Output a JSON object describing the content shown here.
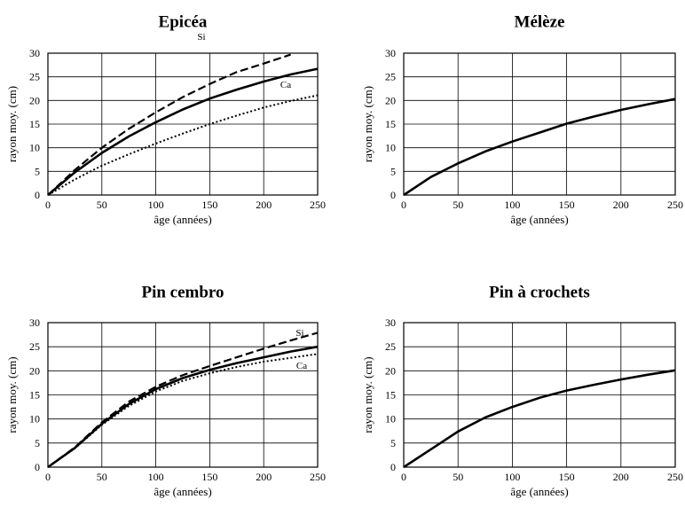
{
  "chart_data": [
    {
      "type": "line",
      "title": "Epicéa",
      "xlabel": "âge (années)",
      "ylabel": "rayon moy. (cm)",
      "xlim": [
        0,
        250
      ],
      "ylim": [
        0,
        30
      ],
      "xticks": [
        0,
        50,
        100,
        150,
        200,
        250
      ],
      "yticks": [
        0,
        5,
        10,
        15,
        20,
        25,
        30
      ],
      "grid": true,
      "series": [
        {
          "name": "",
          "style": "solid",
          "x": [
            0,
            25,
            50,
            75,
            100,
            125,
            150,
            175,
            200,
            225,
            250
          ],
          "y": [
            0,
            4.8,
            8.9,
            12.4,
            15.4,
            18.1,
            20.4,
            22.3,
            24.0,
            25.5,
            26.7
          ]
        },
        {
          "name": "Si",
          "style": "dashed",
          "x": [
            0,
            25,
            50,
            75,
            100,
            125,
            150,
            175,
            200,
            225
          ],
          "y": [
            0,
            5.3,
            10.0,
            14.0,
            17.5,
            20.7,
            23.5,
            26.0,
            27.8,
            29.7
          ]
        },
        {
          "name": "Ca",
          "style": "dotted",
          "x": [
            0,
            25,
            50,
            75,
            100,
            125,
            150,
            175,
            200,
            225,
            250
          ],
          "y": [
            0,
            3.3,
            6.2,
            8.6,
            10.9,
            13.0,
            15.0,
            16.8,
            18.5,
            19.9,
            21.1
          ]
        }
      ]
    },
    {
      "type": "line",
      "title": "Mélèze",
      "xlabel": "âge (années)",
      "ylabel": "rayon moy. (cm)",
      "xlim": [
        0,
        250
      ],
      "ylim": [
        0,
        30
      ],
      "xticks": [
        0,
        50,
        100,
        150,
        200,
        250
      ],
      "yticks": [
        0,
        5,
        10,
        15,
        20,
        25,
        30
      ],
      "grid": true,
      "series": [
        {
          "name": "",
          "style": "solid",
          "x": [
            0,
            25,
            50,
            75,
            100,
            125,
            150,
            175,
            200,
            225,
            250
          ],
          "y": [
            0,
            3.8,
            6.7,
            9.2,
            11.3,
            13.2,
            15.1,
            16.6,
            18.0,
            19.2,
            20.3
          ]
        }
      ]
    },
    {
      "type": "line",
      "title": "Pin cembro",
      "xlabel": "âge (années)",
      "ylabel": "rayon moy. (cm)",
      "xlim": [
        0,
        250
      ],
      "ylim": [
        0,
        30
      ],
      "xticks": [
        0,
        50,
        100,
        150,
        200,
        250
      ],
      "yticks": [
        0,
        5,
        10,
        15,
        20,
        25,
        30
      ],
      "grid": true,
      "series": [
        {
          "name": "",
          "style": "solid",
          "x": [
            0,
            25,
            50,
            75,
            100,
            125,
            150,
            175,
            200,
            225,
            250
          ],
          "y": [
            0,
            4.0,
            9.0,
            13.1,
            16.2,
            18.5,
            20.2,
            21.6,
            22.8,
            24.0,
            25.0
          ]
        },
        {
          "name": "Si",
          "style": "dashed",
          "x": [
            0,
            25,
            50,
            75,
            100,
            125,
            150,
            175,
            200,
            225,
            250
          ],
          "y": [
            0,
            4.1,
            9.3,
            13.6,
            16.7,
            19.1,
            21.0,
            22.8,
            24.6,
            26.3,
            27.9
          ]
        },
        {
          "name": "Ca",
          "style": "dotted",
          "x": [
            0,
            25,
            50,
            75,
            100,
            125,
            150,
            175,
            200,
            225,
            250
          ],
          "y": [
            0,
            3.9,
            8.8,
            12.7,
            15.7,
            17.9,
            19.5,
            20.8,
            21.9,
            22.7,
            23.5
          ]
        }
      ]
    },
    {
      "type": "line",
      "title": "Pin à crochets",
      "xlabel": "âge (années)",
      "ylabel": "rayon moy. (cm)",
      "xlim": [
        0,
        250
      ],
      "ylim": [
        0,
        30
      ],
      "xticks": [
        0,
        50,
        100,
        150,
        200,
        250
      ],
      "yticks": [
        0,
        5,
        10,
        15,
        20,
        25,
        30
      ],
      "grid": true,
      "series": [
        {
          "name": "",
          "style": "solid",
          "x": [
            0,
            25,
            50,
            75,
            100,
            125,
            150,
            175,
            200,
            225,
            250
          ],
          "y": [
            0,
            3.7,
            7.4,
            10.3,
            12.5,
            14.4,
            15.9,
            17.1,
            18.2,
            19.2,
            20.1
          ]
        }
      ]
    }
  ]
}
